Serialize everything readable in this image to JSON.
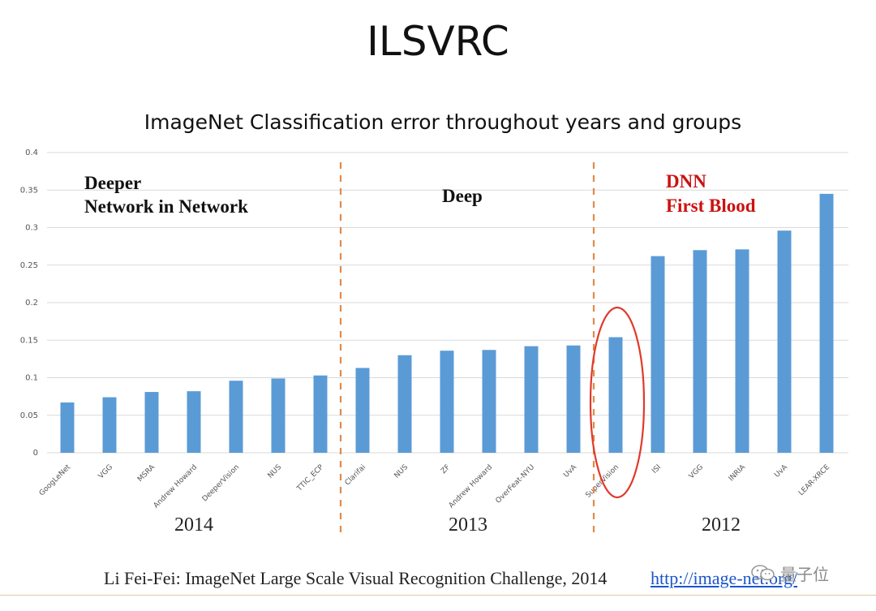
{
  "slide": {
    "title": "ILSVRC",
    "citation": "Li Fei-Fei: ImageNet Large Scale Visual Recognition Challenge, 2014",
    "link": "http://image-net.org/",
    "watermark": "量子位"
  },
  "chart_data": {
    "type": "bar",
    "title": "ImageNet Classification error throughout years and groups",
    "xlabel": "",
    "ylabel": "",
    "ylim": [
      0,
      0.4
    ],
    "yticks": [
      0,
      0.05,
      0.1,
      0.15,
      0.2,
      0.25,
      0.3,
      0.35,
      0.4
    ],
    "ytick_labels": [
      "0",
      "0.05",
      "0.1",
      "0.15",
      "0.2",
      "0.25",
      "0.3",
      "0.35",
      "0.4"
    ],
    "grid": true,
    "bar_color": "#5b9bd5",
    "categories": [
      "GoogLeNet",
      "VGG",
      "MSRA",
      "Andrew Howard",
      "DeeperVision",
      "NUS",
      "TTIC_ECP",
      "Clarifai",
      "NUS",
      "ZF",
      "Andrew Howard",
      "OverFeat-NYU",
      "UvA",
      "SuperVision",
      "ISI",
      "VGG",
      "INRIA",
      "UvA",
      "LEAR-XRCE"
    ],
    "values": [
      0.067,
      0.074,
      0.081,
      0.082,
      0.096,
      0.099,
      0.103,
      0.113,
      0.13,
      0.136,
      0.137,
      0.142,
      0.143,
      0.154,
      0.262,
      0.27,
      0.271,
      0.296,
      0.345
    ],
    "groups": [
      {
        "year": "2014",
        "start": 0,
        "end": 6
      },
      {
        "year": "2013",
        "start": 7,
        "end": 12
      },
      {
        "year": "2012",
        "start": 13,
        "end": 18
      }
    ],
    "annotations": {
      "group_2014": [
        "Deeper",
        "Network in Network"
      ],
      "group_2013": [
        "Deep"
      ],
      "group_2012": [
        "DNN",
        "First Blood"
      ]
    },
    "highlighted_category": "SuperVision",
    "highlight_color": "#e03a2a",
    "divider_color": "#e08a4a",
    "annotation_red": "#cc1111"
  }
}
